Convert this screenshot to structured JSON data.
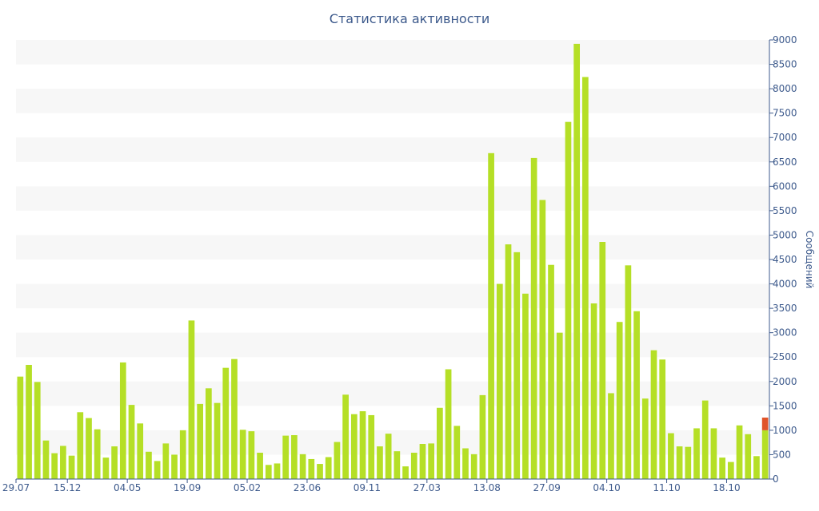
{
  "chart_data": {
    "type": "bar",
    "title": "Статистика активности",
    "ylabel": "Сообщений",
    "xlabel": "",
    "ylim": [
      0,
      9000
    ],
    "y_ticks": [
      0,
      500,
      1000,
      1500,
      2000,
      2500,
      3000,
      3500,
      4000,
      4500,
      5000,
      5500,
      6000,
      6500,
      7000,
      7500,
      8000,
      8500,
      9000
    ],
    "x_tick_labels": [
      {
        "index": 0,
        "label": "29.07"
      },
      {
        "index": 6,
        "label": "15.12"
      },
      {
        "index": 13,
        "label": "04.05"
      },
      {
        "index": 20,
        "label": "19.09"
      },
      {
        "index": 27,
        "label": "05.02"
      },
      {
        "index": 34,
        "label": "23.06"
      },
      {
        "index": 41,
        "label": "09.11"
      },
      {
        "index": 48,
        "label": "27.03"
      },
      {
        "index": 55,
        "label": "13.08"
      },
      {
        "index": 62,
        "label": "27.09"
      },
      {
        "index": 69,
        "label": "04.10"
      },
      {
        "index": 76,
        "label": "11.10"
      },
      {
        "index": 83,
        "label": "18.10"
      }
    ],
    "values": [
      2100,
      2340,
      1990,
      790,
      530,
      680,
      480,
      1370,
      1250,
      1020,
      440,
      670,
      2390,
      1520,
      1140,
      560,
      370,
      730,
      500,
      1000,
      3250,
      1540,
      1860,
      1560,
      2280,
      2460,
      1010,
      980,
      540,
      290,
      320,
      890,
      900,
      510,
      410,
      310,
      450,
      760,
      1730,
      1330,
      1390,
      1310,
      670,
      930,
      570,
      260,
      540,
      720,
      730,
      1460,
      2250,
      1090,
      630,
      510,
      1720,
      6680,
      4000,
      4810,
      4650,
      3800,
      6580,
      5720,
      4390,
      3000,
      7320,
      8920,
      8240,
      3600,
      4860,
      1760,
      3220,
      4380,
      3440,
      1650,
      2640,
      2450,
      940,
      670,
      660,
      1040,
      1610,
      1040,
      440,
      350,
      1100,
      920,
      470,
      1000
    ],
    "highlight_last": {
      "value": 260,
      "color": "#e0542a"
    },
    "bar_color": "#b5df26",
    "band_color": "#f7f7f7",
    "axis_color": "#3d5a8c",
    "grid": true,
    "y_axis_side": "right"
  }
}
